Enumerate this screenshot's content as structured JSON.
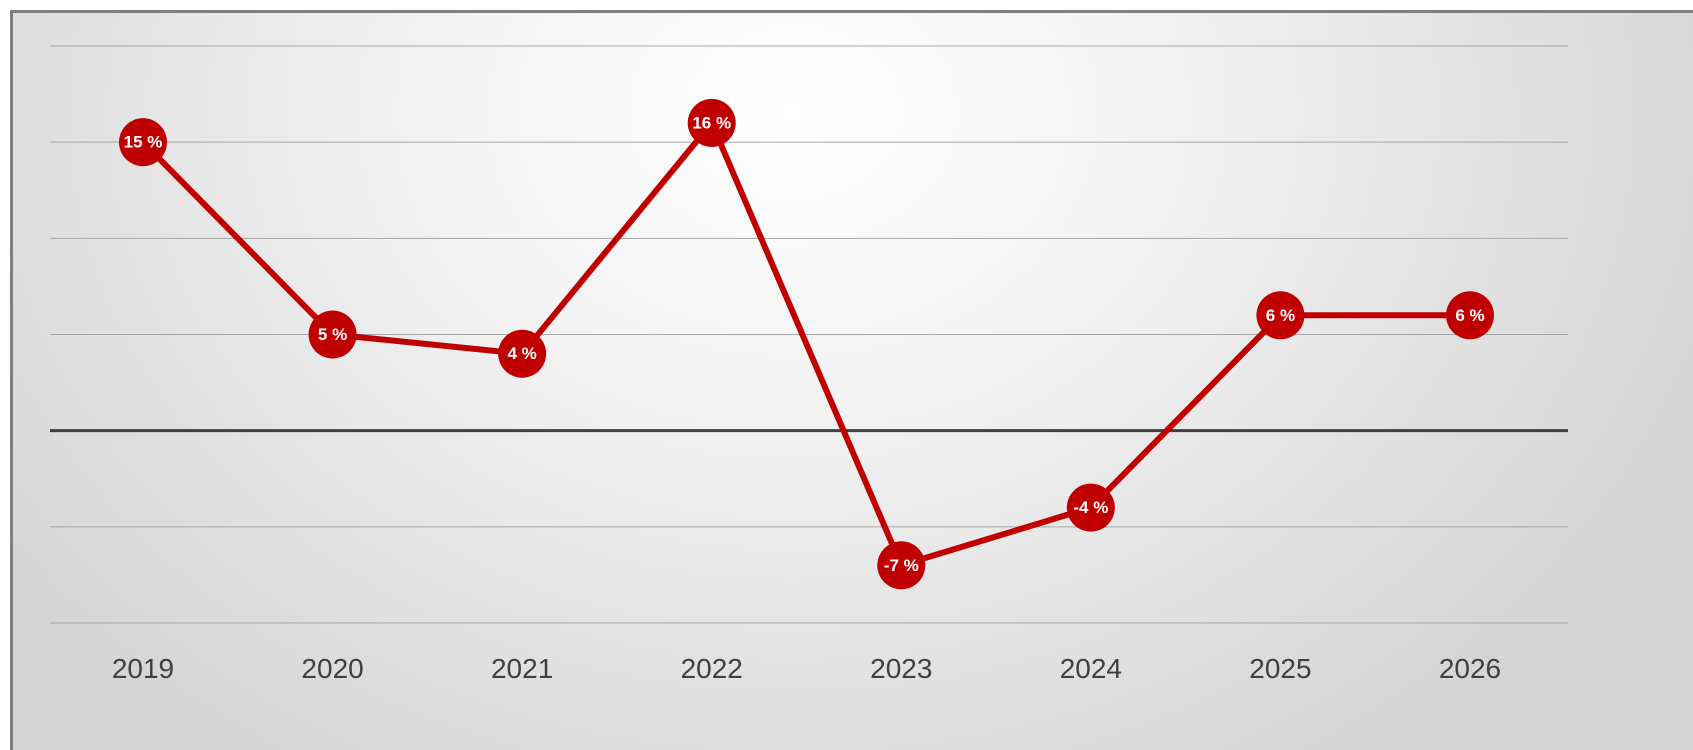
{
  "chart_data": {
    "type": "line",
    "x": [
      "2019",
      "2020",
      "2021",
      "2022",
      "2023",
      "2024",
      "2025",
      "2026"
    ],
    "series": [
      {
        "values": [
          15,
          5,
          4,
          16,
          -7,
          -4,
          6,
          6
        ],
        "data_labels": [
          "15 %",
          "5 %",
          "4 %",
          "16 %",
          "-7 %",
          "-4 %",
          "6 %",
          "6 %"
        ]
      }
    ],
    "ylim": [
      -10,
      20
    ],
    "y_gridlines": [
      -10,
      -5,
      0,
      5,
      10,
      15,
      20
    ],
    "y_tick_labels_shown": false,
    "grid": true,
    "legend": "none",
    "colors": {
      "series": "#c00000",
      "marker": "#c00000",
      "label_text": "#ffffff",
      "zero_line": "#404040",
      "grid": "#a6a6a6",
      "axis_text": "#404040"
    }
  }
}
